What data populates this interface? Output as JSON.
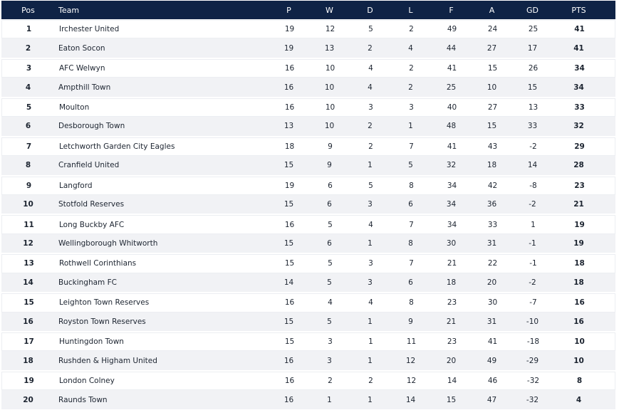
{
  "header": {
    "pos": "Pos",
    "team": "Team",
    "p": "P",
    "w": "W",
    "d": "D",
    "l": "L",
    "f": "F",
    "a": "A",
    "gd": "GD",
    "pts": "PTS"
  },
  "rows": [
    {
      "pos": "1",
      "team": "Irchester United",
      "p": "19",
      "w": "12",
      "d": "5",
      "l": "2",
      "f": "49",
      "a": "24",
      "gd": "25",
      "pts": "41"
    },
    {
      "pos": "2",
      "team": "Eaton Socon",
      "p": "19",
      "w": "13",
      "d": "2",
      "l": "4",
      "f": "44",
      "a": "27",
      "gd": "17",
      "pts": "41"
    },
    {
      "pos": "3",
      "team": "AFC Welwyn",
      "p": "16",
      "w": "10",
      "d": "4",
      "l": "2",
      "f": "41",
      "a": "15",
      "gd": "26",
      "pts": "34"
    },
    {
      "pos": "4",
      "team": "Ampthill Town",
      "p": "16",
      "w": "10",
      "d": "4",
      "l": "2",
      "f": "25",
      "a": "10",
      "gd": "15",
      "pts": "34"
    },
    {
      "pos": "5",
      "team": "Moulton",
      "p": "16",
      "w": "10",
      "d": "3",
      "l": "3",
      "f": "40",
      "a": "27",
      "gd": "13",
      "pts": "33"
    },
    {
      "pos": "6",
      "team": "Desborough Town",
      "p": "13",
      "w": "10",
      "d": "2",
      "l": "1",
      "f": "48",
      "a": "15",
      "gd": "33",
      "pts": "32"
    },
    {
      "pos": "7",
      "team": "Letchworth Garden City Eagles",
      "p": "18",
      "w": "9",
      "d": "2",
      "l": "7",
      "f": "41",
      "a": "43",
      "gd": "-2",
      "pts": "29"
    },
    {
      "pos": "8",
      "team": "Cranfield United",
      "p": "15",
      "w": "9",
      "d": "1",
      "l": "5",
      "f": "32",
      "a": "18",
      "gd": "14",
      "pts": "28"
    },
    {
      "pos": "9",
      "team": "Langford",
      "p": "19",
      "w": "6",
      "d": "5",
      "l": "8",
      "f": "34",
      "a": "42",
      "gd": "-8",
      "pts": "23"
    },
    {
      "pos": "10",
      "team": "Stotfold Reserves",
      "p": "15",
      "w": "6",
      "d": "3",
      "l": "6",
      "f": "34",
      "a": "36",
      "gd": "-2",
      "pts": "21"
    },
    {
      "pos": "11",
      "team": "Long Buckby AFC",
      "p": "16",
      "w": "5",
      "d": "4",
      "l": "7",
      "f": "34",
      "a": "33",
      "gd": "1",
      "pts": "19"
    },
    {
      "pos": "12",
      "team": "Wellingborough Whitworth",
      "p": "15",
      "w": "6",
      "d": "1",
      "l": "8",
      "f": "30",
      "a": "31",
      "gd": "-1",
      "pts": "19"
    },
    {
      "pos": "13",
      "team": "Rothwell Corinthians",
      "p": "15",
      "w": "5",
      "d": "3",
      "l": "7",
      "f": "21",
      "a": "22",
      "gd": "-1",
      "pts": "18"
    },
    {
      "pos": "14",
      "team": "Buckingham FC",
      "p": "14",
      "w": "5",
      "d": "3",
      "l": "6",
      "f": "18",
      "a": "20",
      "gd": "-2",
      "pts": "18"
    },
    {
      "pos": "15",
      "team": "Leighton Town Reserves",
      "p": "16",
      "w": "4",
      "d": "4",
      "l": "8",
      "f": "23",
      "a": "30",
      "gd": "-7",
      "pts": "16"
    },
    {
      "pos": "16",
      "team": "Royston Town Reserves",
      "p": "15",
      "w": "5",
      "d": "1",
      "l": "9",
      "f": "21",
      "a": "31",
      "gd": "-10",
      "pts": "16"
    },
    {
      "pos": "17",
      "team": "Huntingdon Town",
      "p": "15",
      "w": "3",
      "d": "1",
      "l": "11",
      "f": "23",
      "a": "41",
      "gd": "-18",
      "pts": "10"
    },
    {
      "pos": "18",
      "team": "Rushden & Higham United",
      "p": "16",
      "w": "3",
      "d": "1",
      "l": "12",
      "f": "20",
      "a": "49",
      "gd": "-29",
      "pts": "10"
    },
    {
      "pos": "19",
      "team": "London Colney",
      "p": "16",
      "w": "2",
      "d": "2",
      "l": "12",
      "f": "14",
      "a": "46",
      "gd": "-32",
      "pts": "8"
    },
    {
      "pos": "20",
      "team": "Raunds Town",
      "p": "16",
      "w": "1",
      "d": "1",
      "l": "14",
      "f": "15",
      "a": "47",
      "gd": "-32",
      "pts": "4"
    }
  ],
  "colors": {
    "header_bg": "#0f2346",
    "header_text": "#ffffff",
    "row_alt_bg": "#f1f2f5",
    "text": "#1c2430"
  }
}
